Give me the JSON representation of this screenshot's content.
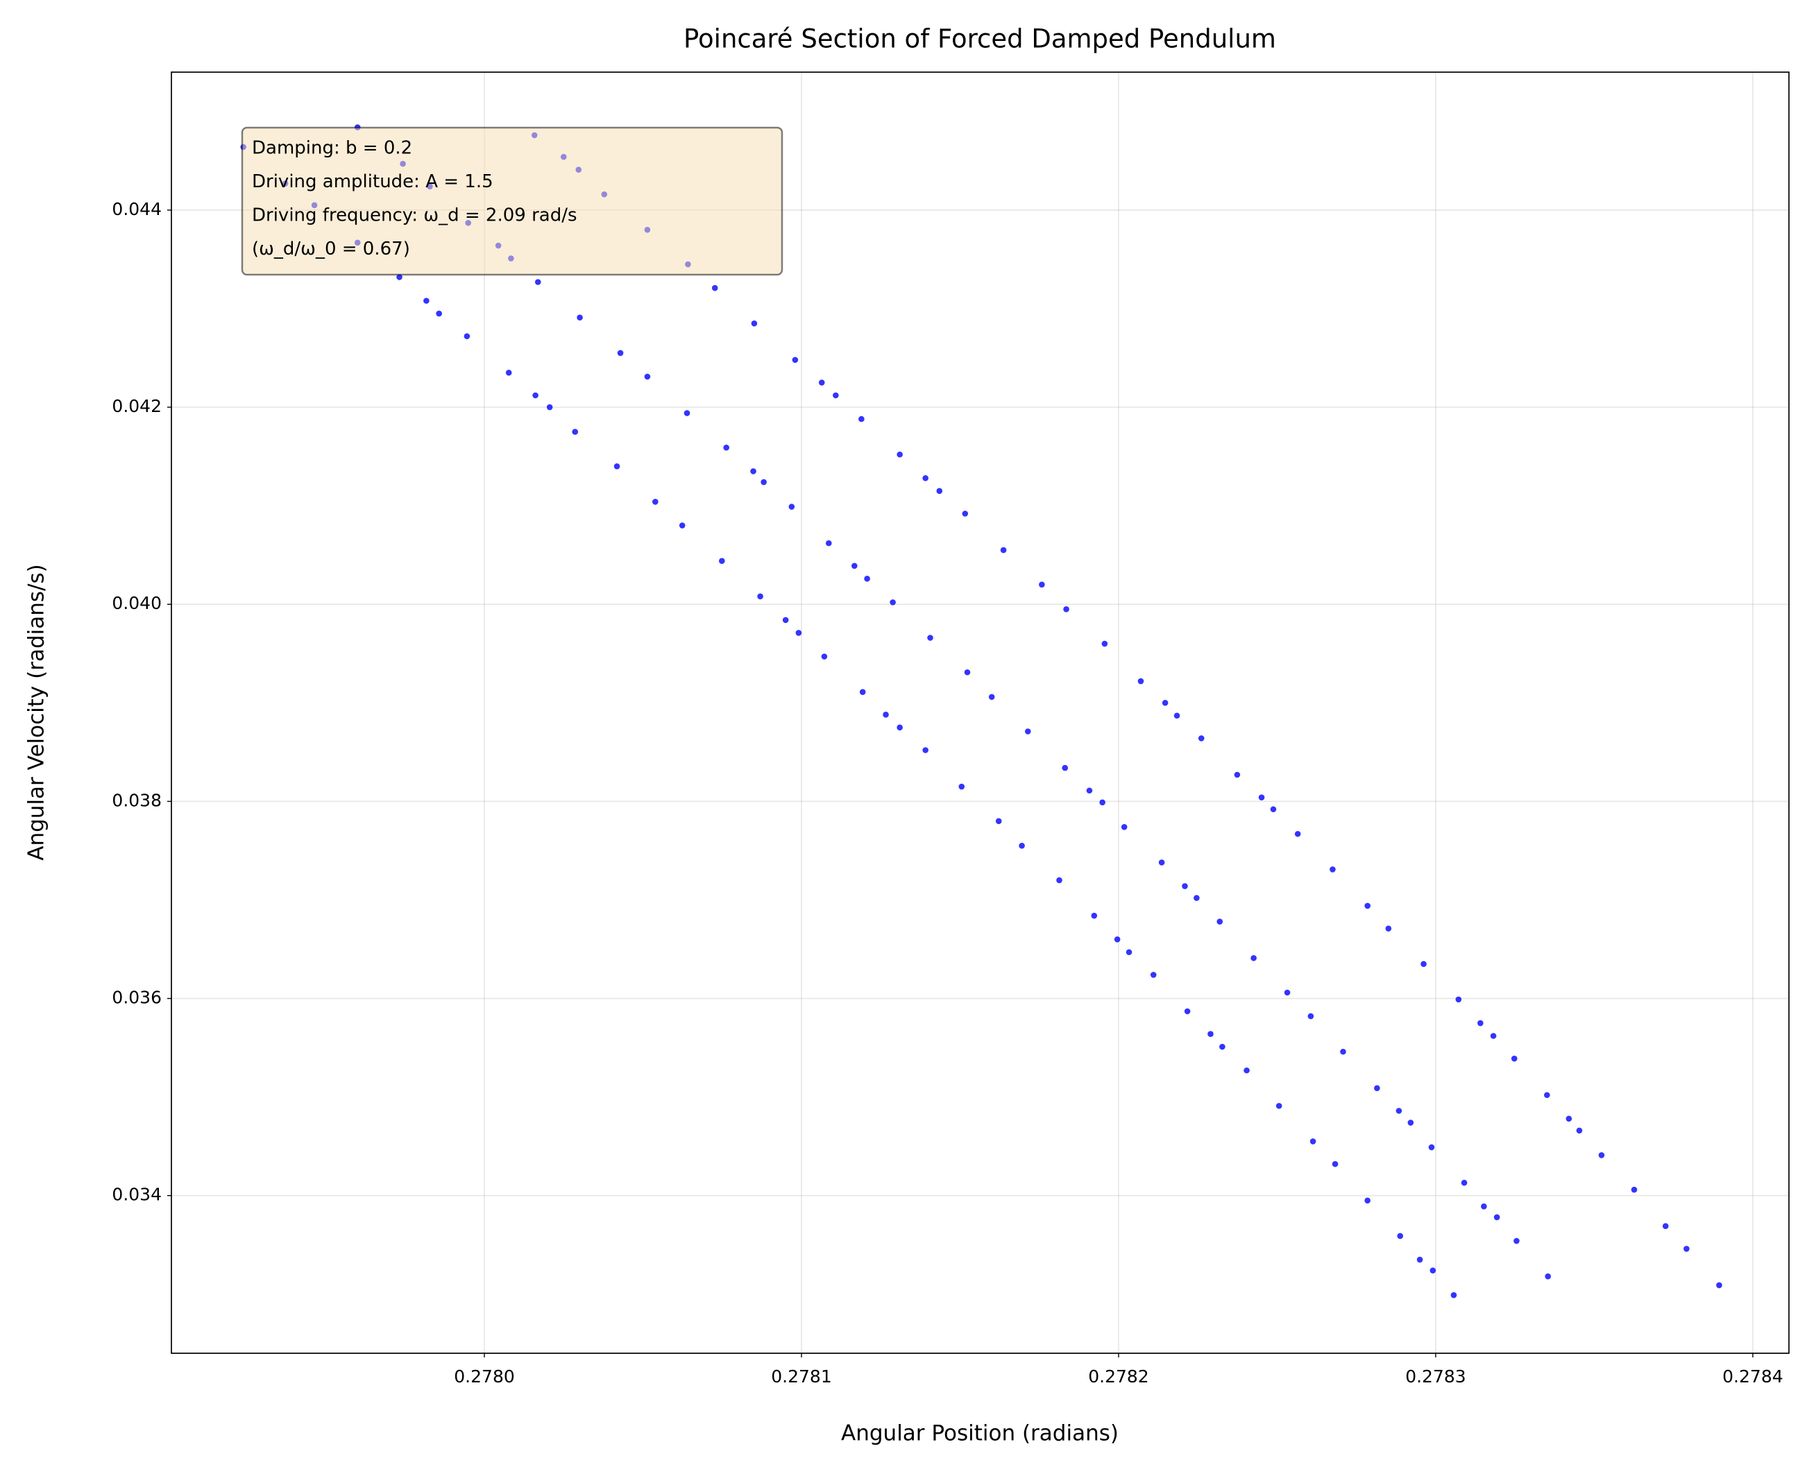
{
  "chart_data": {
    "type": "scatter",
    "title": "Poincaré Section of Forced Damped Pendulum",
    "x_label": "Angular Position (radians)",
    "y_label": "Angular Velocity (radians/s)",
    "annotation": [
      "Damping: b = 0.2",
      "Driving amplitude: A = 1.5",
      "Driving frequency: ω_d = 2.09 rad/s",
      "(ω_d/ω_0 = 0.67)"
    ],
    "color": "#0000ff",
    "grid": true,
    "xlim": [
      0.2779013,
      0.2784114
    ],
    "ylim": [
      0.0324,
      0.0454
    ],
    "xticks": [
      {
        "value": 0.278,
        "label": "0.2780"
      },
      0.2781,
      0.2782,
      0.2783,
      0.2784
    ],
    "yticks": [
      0.034,
      0.036,
      0.038,
      {
        "value": 0.04,
        "label": "0.040"
      },
      0.042,
      0.044
    ],
    "x": [
      0.277924,
      0.2779372,
      0.2779464,
      0.27796,
      0.2779732,
      0.2779817,
      0.2779857,
      0.2779945,
      0.2780077,
      0.2780161,
      0.2780206,
      0.2780286,
      0.2780418,
      0.2780539,
      0.2780624,
      0.2780749,
      0.278087,
      0.278095,
      0.2780991,
      0.2781072,
      0.2781193,
      0.2781266,
      0.278131,
      0.2781391,
      0.2781505,
      0.2781622,
      0.2781695,
      0.2781813,
      0.2781923,
      0.2781996,
      0.2782033,
      0.278211,
      0.2782217,
      0.278229,
      0.2782327,
      0.2782404,
      0.2782506,
      0.2782613,
      0.2782683,
      0.2782785,
      0.2782888,
      0.278295,
      0.2782991,
      0.2783057,
      0.27796,
      0.2779743,
      0.2779828,
      0.2779949,
      0.2780044,
      0.2780084,
      0.2780169,
      0.2780301,
      0.2780429,
      0.2780514,
      0.2780639,
      0.2780763,
      0.2780848,
      0.2780881,
      0.2780969,
      0.2781086,
      0.2781167,
      0.2781207,
      0.2781288,
      0.2781406,
      0.2781523,
      0.27816,
      0.2781714,
      0.2781831,
      0.2781908,
      0.2781949,
      0.2782018,
      0.2782136,
      0.2782209,
      0.2782246,
      0.2782319,
      0.2782426,
      0.2782532,
      0.2782606,
      0.2782708,
      0.2782815,
      0.2782884,
      0.2782921,
      0.2782987,
      0.278309,
      0.2783152,
      0.2783193,
      0.2783255,
      0.2783354,
      0.2780158,
      0.278025,
      0.2780297,
      0.2780378,
      0.2780514,
      0.2780642,
      0.2780727,
      0.2780851,
      0.278098,
      0.2781064,
      0.2781108,
      0.2781189,
      0.278131,
      0.2781391,
      0.2781435,
      0.2781516,
      0.2781637,
      0.2781758,
      0.2781835,
      0.2781956,
      0.278207,
      0.2782147,
      0.2782184,
      0.2782261,
      0.2782374,
      0.2782451,
      0.2782488,
      0.2782565,
      0.2782675,
      0.2782785,
      0.2782851,
      0.2782962,
      0.2783072,
      0.2783141,
      0.2783182,
      0.2783248,
      0.2783351,
      0.278342,
      0.2783453,
      0.2783523,
      0.2783626,
      0.2783725,
      0.2783791,
      0.2783894
    ],
    "values": [
      0.04464,
      0.04427,
      0.04405,
      0.04367,
      0.04332,
      0.04308,
      0.04295,
      0.04272,
      0.04235,
      0.04212,
      0.042,
      0.04175,
      0.0414,
      0.04104,
      0.0408,
      0.04044,
      0.04008,
      0.03984,
      0.03971,
      0.03947,
      0.03911,
      0.03888,
      0.03875,
      0.03852,
      0.03815,
      0.0378,
      0.03755,
      0.0372,
      0.03684,
      0.0366,
      0.03647,
      0.03624,
      0.03587,
      0.03564,
      0.03551,
      0.03527,
      0.03491,
      0.03455,
      0.03432,
      0.03395,
      0.03359,
      0.03335,
      0.03324,
      0.03299,
      0.04484,
      0.04447,
      0.04424,
      0.04387,
      0.04364,
      0.04351,
      0.04327,
      0.04291,
      0.04255,
      0.04231,
      0.04194,
      0.04159,
      0.04135,
      0.04124,
      0.04099,
      0.04062,
      0.04039,
      0.04026,
      0.04002,
      0.03966,
      0.03931,
      0.03906,
      0.03871,
      0.03834,
      0.03811,
      0.03799,
      0.03774,
      0.03738,
      0.03714,
      0.03702,
      0.03678,
      0.03641,
      0.03606,
      0.03582,
      0.03546,
      0.03509,
      0.03486,
      0.03474,
      0.03449,
      0.03413,
      0.03389,
      0.03378,
      0.03354,
      0.03318,
      0.04476,
      0.04454,
      0.04441,
      0.04416,
      0.0438,
      0.04345,
      0.04321,
      0.04285,
      0.04248,
      0.04225,
      0.04212,
      0.04188,
      0.04152,
      0.04128,
      0.04115,
      0.04092,
      0.04055,
      0.0402,
      0.03995,
      0.0396,
      0.03922,
      0.039,
      0.03887,
      0.03864,
      0.03827,
      0.03804,
      0.03792,
      0.03767,
      0.03731,
      0.03694,
      0.03671,
      0.03635,
      0.03599,
      0.03575,
      0.03562,
      0.03539,
      0.03502,
      0.03478,
      0.03466,
      0.03441,
      0.03406,
      0.03369,
      0.03346,
      0.03309
    ]
  }
}
